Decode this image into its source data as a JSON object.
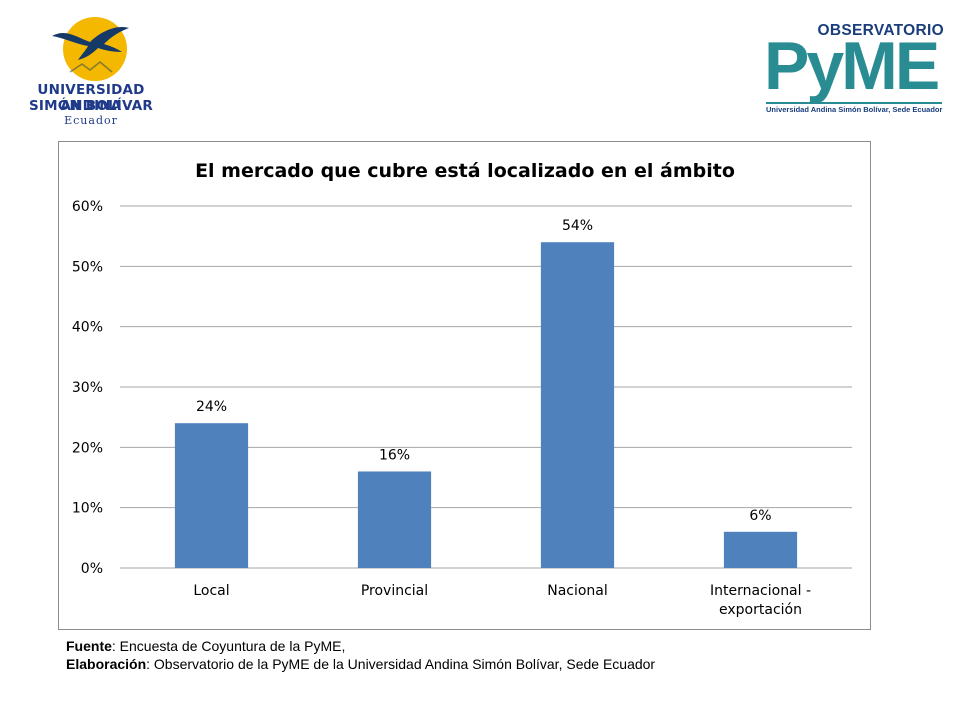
{
  "logos": {
    "uasb": {
      "line1": "UNIVERSIDAD ANDINA",
      "line2": "SIMÓN BOLÍVAR",
      "country": "Ecuador",
      "sun_color": "#f5b800",
      "bird_color": "#163a68"
    },
    "observatorio": {
      "top": "OBSERVATORIO",
      "main": "PyME",
      "subtitle": "Universidad Andina Simón Bolívar, Sede Ecuador",
      "teal_color": "#2a8c93",
      "navy_color": "#1a3d7c"
    }
  },
  "chart_data": {
    "type": "bar",
    "title": "El mercado que cubre está localizado en el ámbito",
    "categories": [
      [
        "Local"
      ],
      [
        "Provincial"
      ],
      [
        "Nacional"
      ],
      [
        "Internacional -",
        "exportación"
      ]
    ],
    "values": [
      24,
      16,
      54,
      6
    ],
    "data_labels": [
      "24%",
      "16%",
      "54%",
      "6%"
    ],
    "ylim": [
      0,
      60
    ],
    "yticks": [
      0,
      10,
      20,
      30,
      40,
      50,
      60
    ],
    "ytick_labels": [
      "0%",
      "10%",
      "20%",
      "30%",
      "40%",
      "50%",
      "60%"
    ],
    "grid": true,
    "legend": "none",
    "bar_color": "#4f81bd",
    "grid_color": "#a6a6a6"
  },
  "notes": {
    "source_label": "Fuente",
    "source_text": ": Encuesta de Coyuntura de la PyME,",
    "elaboration_label": "Elaboración",
    "elaboration_text": ": Observatorio de la PyME de la Universidad Andina Simón Bolívar, Sede Ecuador"
  }
}
